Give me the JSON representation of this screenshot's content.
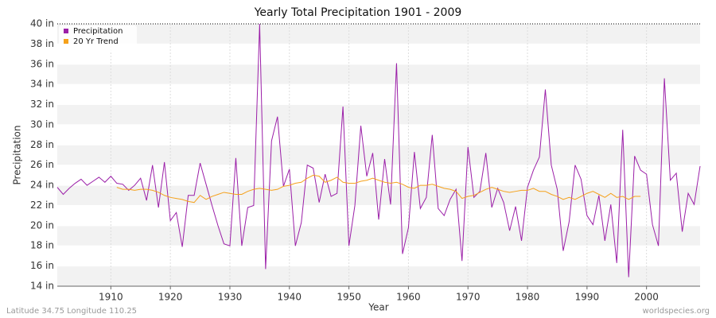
{
  "chart_data": {
    "type": "line",
    "title": "Yearly Total Precipitation 1901 - 2009",
    "x_label": "Year",
    "y_label": "Precipitation",
    "footer_left": "Latitude 34.75 Longitude 110.25",
    "footer_right": "worldspecies.org",
    "x": [
      1901,
      1902,
      1903,
      1904,
      1905,
      1906,
      1907,
      1908,
      1909,
      1910,
      1911,
      1912,
      1913,
      1914,
      1915,
      1916,
      1917,
      1918,
      1919,
      1920,
      1921,
      1922,
      1923,
      1924,
      1925,
      1926,
      1927,
      1928,
      1929,
      1930,
      1931,
      1932,
      1933,
      1934,
      1935,
      1936,
      1937,
      1938,
      1939,
      1940,
      1941,
      1942,
      1943,
      1944,
      1945,
      1946,
      1947,
      1948,
      1949,
      1950,
      1951,
      1952,
      1953,
      1954,
      1955,
      1956,
      1957,
      1958,
      1959,
      1960,
      1961,
      1962,
      1963,
      1964,
      1965,
      1966,
      1967,
      1968,
      1969,
      1970,
      1971,
      1972,
      1973,
      1974,
      1975,
      1976,
      1977,
      1978,
      1979,
      1980,
      1981,
      1982,
      1983,
      1984,
      1985,
      1986,
      1987,
      1988,
      1989,
      1990,
      1991,
      1992,
      1993,
      1994,
      1995,
      1996,
      1997,
      1998,
      1999,
      2000,
      2001,
      2002,
      2003,
      2004,
      2005,
      2006,
      2007,
      2008,
      2009
    ],
    "series": [
      {
        "name": "Precipitation",
        "color": "#9b1fa8",
        "values": [
          23.8,
          23.1,
          23.7,
          24.2,
          24.6,
          24.0,
          24.4,
          24.8,
          24.3,
          24.9,
          24.2,
          24.1,
          23.5,
          24.0,
          24.7,
          22.5,
          26.0,
          21.8,
          26.3,
          20.5,
          21.3,
          17.9,
          23.0,
          23.0,
          26.2,
          24.1,
          22.0,
          20.0,
          18.2,
          18.0,
          26.7,
          18.0,
          21.8,
          22.0,
          40.0,
          15.7,
          28.4,
          30.8,
          23.9,
          25.6,
          18.0,
          20.3,
          26.0,
          25.7,
          22.3,
          25.1,
          22.9,
          23.2,
          31.8,
          18.0,
          22.0,
          29.9,
          24.9,
          27.2,
          20.6,
          26.6,
          22.1,
          36.1,
          17.2,
          19.8,
          27.3,
          21.7,
          22.8,
          29.0,
          21.7,
          21.0,
          22.6,
          23.6,
          16.5,
          27.8,
          22.8,
          23.4,
          27.2,
          21.8,
          23.7,
          22.3,
          19.5,
          21.9,
          18.5,
          23.8,
          25.5,
          26.8,
          33.5,
          26.0,
          23.6,
          17.5,
          20.4,
          26.0,
          24.6,
          21.0,
          20.1,
          23.0,
          18.5,
          22.1,
          16.3,
          29.5,
          14.9,
          26.9,
          25.5,
          25.1,
          20.1,
          18.0,
          34.6,
          24.5,
          25.2,
          19.4,
          23.2,
          22.1,
          25.9
        ]
      },
      {
        "name": "20 Yr Trend",
        "color": "#f5a11b",
        "values": [
          null,
          null,
          null,
          null,
          null,
          null,
          null,
          null,
          null,
          null,
          23.8,
          23.6,
          23.6,
          23.5,
          23.6,
          23.6,
          23.5,
          23.3,
          23.0,
          22.8,
          22.7,
          22.6,
          22.4,
          22.3,
          23.0,
          22.6,
          22.9,
          23.1,
          23.3,
          23.2,
          23.1,
          23.1,
          23.4,
          23.6,
          23.7,
          23.6,
          23.5,
          23.6,
          23.9,
          24.0,
          24.2,
          24.3,
          24.7,
          25.0,
          24.9,
          24.3,
          24.5,
          24.8,
          24.3,
          24.2,
          24.2,
          24.4,
          24.5,
          24.7,
          24.5,
          24.3,
          24.2,
          24.3,
          24.1,
          23.8,
          23.7,
          24.0,
          24.0,
          24.1,
          23.9,
          23.7,
          23.6,
          23.4,
          22.7,
          22.9,
          23.0,
          23.3,
          23.6,
          23.8,
          23.6,
          23.4,
          23.3,
          23.4,
          23.5,
          23.5,
          23.7,
          23.4,
          23.4,
          23.1,
          22.9,
          22.6,
          22.8,
          22.6,
          22.9,
          23.2,
          23.4,
          23.1,
          22.8,
          23.2,
          22.8,
          22.9,
          22.6,
          22.9,
          22.9,
          null,
          null,
          null,
          null,
          null,
          null,
          null,
          null,
          null,
          null
        ]
      }
    ],
    "xlim": [
      1901,
      2009
    ],
    "xticks": [
      1910,
      1920,
      1930,
      1940,
      1950,
      1960,
      1970,
      1980,
      1990,
      2000
    ],
    "ylim": [
      14,
      40
    ],
    "yticks": [
      {
        "value": 14,
        "label": "14 in"
      },
      {
        "value": 16,
        "label": "16 in"
      },
      {
        "value": 18,
        "label": "18 in"
      },
      {
        "value": 20,
        "label": "20 in"
      },
      {
        "value": 22,
        "label": "22 in"
      },
      {
        "value": 24,
        "label": "24 in"
      },
      {
        "value": 26,
        "label": "26 in"
      },
      {
        "value": 28,
        "label": "28 in"
      },
      {
        "value": 30,
        "label": "30 in"
      },
      {
        "value": 32,
        "label": "32 in"
      },
      {
        "value": 34,
        "label": "34 in"
      },
      {
        "value": 36,
        "label": "36 in"
      },
      {
        "value": 38,
        "label": "38 in"
      },
      {
        "value": 40,
        "label": "40 in"
      }
    ],
    "grid": true,
    "legend": "top-left"
  }
}
